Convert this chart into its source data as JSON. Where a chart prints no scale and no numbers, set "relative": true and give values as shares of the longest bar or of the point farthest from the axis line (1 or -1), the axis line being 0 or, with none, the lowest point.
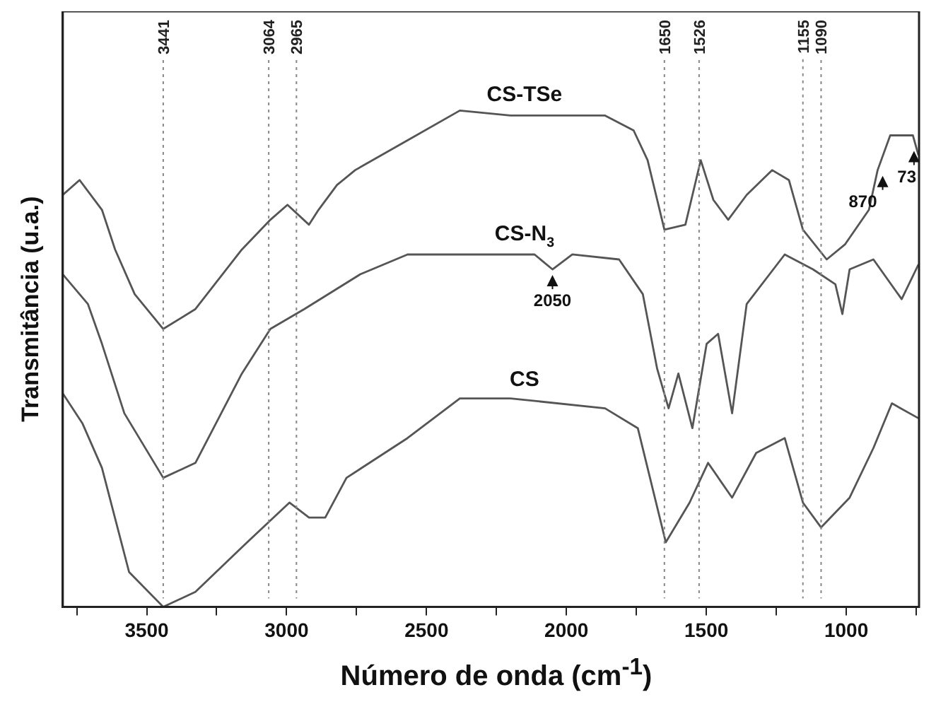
{
  "chart_data": {
    "type": "line",
    "relative": true,
    "xlabel": "Número de onda (cm$^{-1}$)",
    "ylabel": "Transmitância (u.a.)",
    "xlim": [
      3800,
      740
    ],
    "xticks": [
      {
        "value": 3750,
        "label": null
      },
      3500,
      {
        "value": 3250,
        "label": null
      },
      3000,
      {
        "value": 2750,
        "label": null
      },
      2500,
      {
        "value": 2250,
        "label": null
      },
      2000,
      {
        "value": 1750,
        "label": null
      },
      1500,
      {
        "value": 1250,
        "label": null
      },
      1000,
      {
        "value": 750,
        "label": null
      }
    ],
    "grid": false,
    "legend": false,
    "marker": "none",
    "line_style": "solid",
    "series": [
      {
        "name": "CS-TSe",
        "color": "#555555",
        "x": [
          3800,
          3740,
          3660,
          3613,
          3543,
          3441,
          3326,
          3160,
          3058,
          2997,
          2920,
          2886,
          2820,
          2755,
          2568,
          2381,
          2200,
          1862,
          1760,
          1710,
          1650,
          1575,
          1520,
          1475,
          1422,
          1356,
          1265,
          1205,
          1155,
          1070,
          1005,
          919,
          888,
          843,
          762,
          742
        ],
        "values": [
          0.83,
          0.86,
          0.8,
          0.72,
          0.63,
          0.56,
          0.6,
          0.72,
          0.78,
          0.81,
          0.77,
          0.8,
          0.85,
          0.88,
          0.94,
          1.0,
          0.99,
          0.99,
          0.96,
          0.9,
          0.76,
          0.77,
          0.9,
          0.82,
          0.78,
          0.83,
          0.88,
          0.86,
          0.76,
          0.7,
          0.73,
          0.8,
          0.88,
          0.95,
          0.95,
          0.91
        ]
      },
      {
        "name": "CS-N$_{3}$",
        "color": "#555555",
        "x": [
          3800,
          3710,
          3660,
          3580,
          3441,
          3326,
          3160,
          3058,
          2937,
          2737,
          2568,
          2266,
          2114,
          2050,
          1979,
          1812,
          1727,
          1676,
          1635,
          1600,
          1550,
          1499,
          1458,
          1408,
          1356,
          1220,
          1119,
          1039,
          1014,
          988,
          903,
          802,
          742
        ],
        "values": [
          0.67,
          0.61,
          0.53,
          0.39,
          0.26,
          0.29,
          0.47,
          0.56,
          0.6,
          0.67,
          0.71,
          0.71,
          0.71,
          0.68,
          0.71,
          0.7,
          0.63,
          0.48,
          0.4,
          0.47,
          0.36,
          0.53,
          0.55,
          0.39,
          0.61,
          0.71,
          0.68,
          0.65,
          0.59,
          0.68,
          0.7,
          0.62,
          0.69
        ]
      },
      {
        "name": "CS",
        "color": "#555555",
        "x": [
          3800,
          3730,
          3660,
          3563,
          3441,
          3326,
          3160,
          2990,
          2920,
          2862,
          2786,
          2568,
          2381,
          2200,
          1862,
          1745,
          1645,
          1560,
          1494,
          1408,
          1322,
          1220,
          1155,
          1090,
          988,
          903,
          837,
          742
        ],
        "values": [
          0.43,
          0.37,
          0.28,
          0.07,
          0,
          0.03,
          0.12,
          0.21,
          0.18,
          0.18,
          0.26,
          0.34,
          0.42,
          0.42,
          0.4,
          0.36,
          0.13,
          0.21,
          0.29,
          0.22,
          0.31,
          0.34,
          0.21,
          0.16,
          0.22,
          0.32,
          0.41,
          0.38
        ]
      }
    ],
    "ref_lines": [
      {
        "axis": "x",
        "value": 3441,
        "label": "3441",
        "color": "#888888",
        "line_style": "dotted"
      },
      {
        "axis": "x",
        "value": 3064,
        "label": "3064",
        "color": "#888888",
        "line_style": "dotted"
      },
      {
        "axis": "x",
        "value": 2965,
        "label": "2965",
        "color": "#888888",
        "line_style": "dotted"
      },
      {
        "axis": "x",
        "value": 1650,
        "label": "1650",
        "color": "#888888",
        "line_style": "dotted"
      },
      {
        "axis": "x",
        "value": 1526,
        "label": "1526",
        "color": "#888888",
        "line_style": "dotted"
      },
      {
        "axis": "x",
        "value": 1155,
        "label": "1155",
        "color": "#888888",
        "line_style": "dotted"
      },
      {
        "axis": "x",
        "value": 1090,
        "label": "1090",
        "color": "#888888",
        "line_style": "dotted"
      }
    ],
    "annotations": [
      {
        "text": "2050",
        "x": 2050,
        "y": 0.68
      },
      {
        "text": "870",
        "x": 870,
        "y": 0.88
      },
      {
        "text": "73",
        "x": 758,
        "y": 0.93
      }
    ]
  }
}
